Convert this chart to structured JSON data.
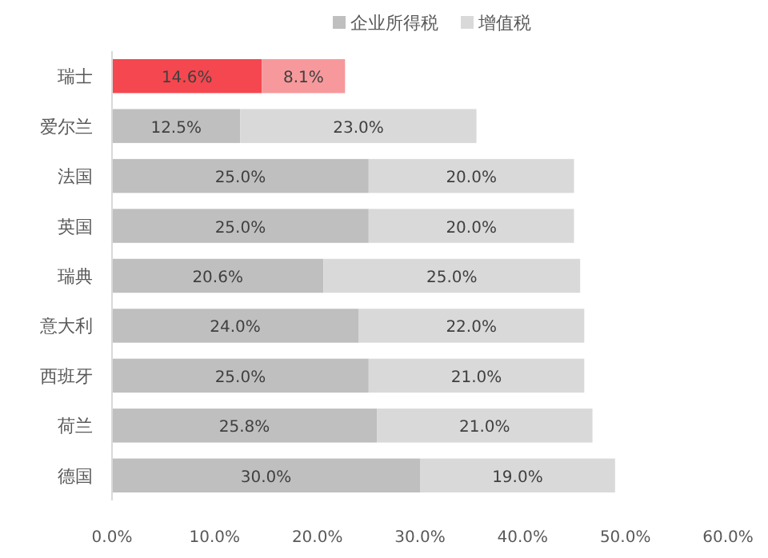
{
  "chart_data": {
    "type": "bar",
    "orientation": "horizontal",
    "stacked": true,
    "legend": "top",
    "grid": false,
    "categories": [
      "瑞士",
      "爱尔兰",
      "法国",
      "英国",
      "瑞典",
      "意大利",
      "西班牙",
      "荷兰",
      "德国"
    ],
    "xlim": [
      0,
      60
    ],
    "xticks": [
      {
        "value": 0,
        "label": "0.0%"
      },
      {
        "value": 10,
        "label": "10.0%"
      },
      {
        "value": 20,
        "label": "20.0%"
      },
      {
        "value": 30,
        "label": "30.0%"
      },
      {
        "value": 40,
        "label": "40.0%"
      },
      {
        "value": 50,
        "label": "50.0%"
      },
      {
        "value": 60,
        "label": "60.0%"
      }
    ],
    "series": [
      {
        "name": "企业所得税",
        "color": "#bfbfbf",
        "colors": [
          "#f5474f",
          "#bfbfbf",
          "#bfbfbf",
          "#bfbfbf",
          "#bfbfbf",
          "#bfbfbf",
          "#bfbfbf",
          "#bfbfbf",
          "#bfbfbf"
        ],
        "values": [
          14.6,
          12.5,
          25.0,
          25.0,
          20.6,
          24.0,
          25.0,
          25.8,
          30.0
        ],
        "value_labels": [
          "14.6%",
          "12.5%",
          "25.0%",
          "25.0%",
          "20.6%",
          "24.0%",
          "25.0%",
          "25.8%",
          "30.0%"
        ]
      },
      {
        "name": "增值税",
        "color": "#d9d9d9",
        "colors": [
          "#f7999c",
          "#d9d9d9",
          "#d9d9d9",
          "#d9d9d9",
          "#d9d9d9",
          "#d9d9d9",
          "#d9d9d9",
          "#d9d9d9",
          "#d9d9d9"
        ],
        "values": [
          8.1,
          23.0,
          20.0,
          20.0,
          25.0,
          22.0,
          21.0,
          21.0,
          19.0
        ],
        "value_labels": [
          "8.1%",
          "23.0%",
          "20.0%",
          "20.0%",
          "25.0%",
          "22.0%",
          "21.0%",
          "21.0%",
          "19.0%"
        ]
      }
    ]
  }
}
